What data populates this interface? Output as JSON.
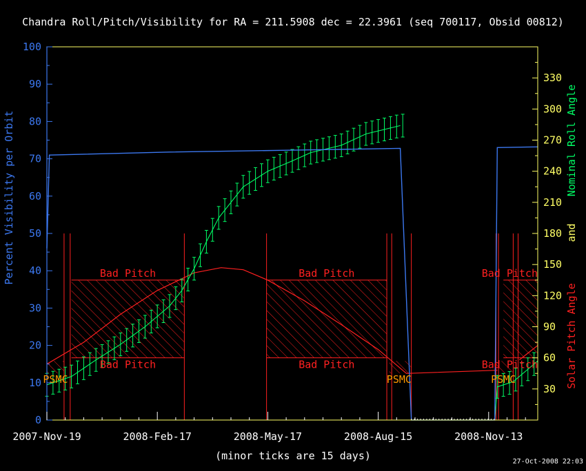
{
  "chart_data": {
    "type": "line",
    "title": "Chandra Roll/Pitch/Visibility for RA = 211.5908 dec = 22.3961 (seq 700117, Obsid 00812)",
    "xlabel": "(minor ticks are 15 days)",
    "x_tick_labels": [
      "2007-Nov-19",
      "2008-Feb-17",
      "2008-May-17",
      "2008-Aug-15",
      "2008-Nov-13"
    ],
    "x_range_days": [
      0,
      400
    ],
    "x_major_tick_days": [
      0,
      90,
      180,
      270,
      360
    ],
    "ylabel_left": "Percent Visibility per Orbit",
    "ylim_left": [
      0,
      100
    ],
    "yticks_left": [
      0,
      10,
      20,
      30,
      40,
      50,
      60,
      70,
      80,
      90,
      100
    ],
    "ylabel_right_roll": "Nominal Roll Angle",
    "ylabel_right_and": "and",
    "ylabel_right_pitch": "Solar Pitch Angle",
    "ylim_right": [
      0,
      360
    ],
    "yticks_right": [
      30,
      60,
      90,
      120,
      150,
      180,
      210,
      240,
      270,
      300,
      330
    ],
    "timestamp": "27-Oct-2008 22:03",
    "zone_labels": {
      "bad_pitch": "Bad Pitch",
      "psmc": "PSMC"
    },
    "series": [
      {
        "name": "Percent Visibility per Orbit",
        "color": "#3c78f0",
        "points": [
          [
            0,
            46
          ],
          [
            2,
            71
          ],
          [
            100,
            71.8
          ],
          [
            200,
            72.3
          ],
          [
            288,
            72.8
          ],
          [
            297,
            0
          ],
          [
            365,
            0
          ],
          [
            367,
            73
          ],
          [
            400,
            73.2
          ]
        ]
      },
      {
        "name": "Nominal Roll Angle",
        "color": "#00ff66",
        "points": [
          [
            0,
            34
          ],
          [
            20,
            42
          ],
          [
            40,
            58
          ],
          [
            60,
            73
          ],
          [
            80,
            90
          ],
          [
            100,
            110
          ],
          [
            110,
            125
          ],
          [
            120,
            146
          ],
          [
            130,
            172
          ],
          [
            140,
            195
          ],
          [
            160,
            225
          ],
          [
            180,
            240
          ],
          [
            200,
            250
          ],
          [
            215,
            258
          ],
          [
            240,
            265
          ],
          [
            260,
            276
          ],
          [
            288,
            284
          ],
          [
            365,
            0
          ],
          [
            367,
            32
          ],
          [
            380,
            37
          ],
          [
            400,
            57
          ]
        ],
        "error_half_width_deg": 11,
        "error_bar_step_days": 5,
        "error_bar_ranges": [
          [
            0,
            290
          ],
          [
            367,
            400
          ]
        ]
      },
      {
        "name": "Solar Pitch Angle",
        "color": "#ff2020",
        "points": [
          [
            0,
            54
          ],
          [
            30,
            75
          ],
          [
            60,
            102
          ],
          [
            90,
            125
          ],
          [
            120,
            142
          ],
          [
            142,
            147
          ],
          [
            160,
            145
          ],
          [
            180,
            135
          ],
          [
            210,
            115
          ],
          [
            240,
            92
          ],
          [
            270,
            68
          ],
          [
            293,
            45
          ],
          [
            367,
            48
          ],
          [
            385,
            58
          ],
          [
            400,
            72
          ]
        ]
      }
    ],
    "bad_pitch_zones_days": [
      [
        20,
        112
      ],
      [
        179,
        277
      ],
      [
        372,
        400
      ]
    ],
    "bad_pitch_band_deg": [
      [
        60,
        60
      ],
      [
        135,
        135
      ]
    ],
    "psmc_zones_days": [
      [
        0,
        14
      ],
      [
        279,
        297
      ],
      [
        366,
        380
      ]
    ],
    "psmc_band_deg": [
      45,
      57
    ],
    "event_line_days": [
      14,
      19,
      112,
      179,
      277,
      281,
      297,
      366,
      368,
      380,
      384
    ],
    "event_line_top_deg": 180,
    "grid": false
  }
}
